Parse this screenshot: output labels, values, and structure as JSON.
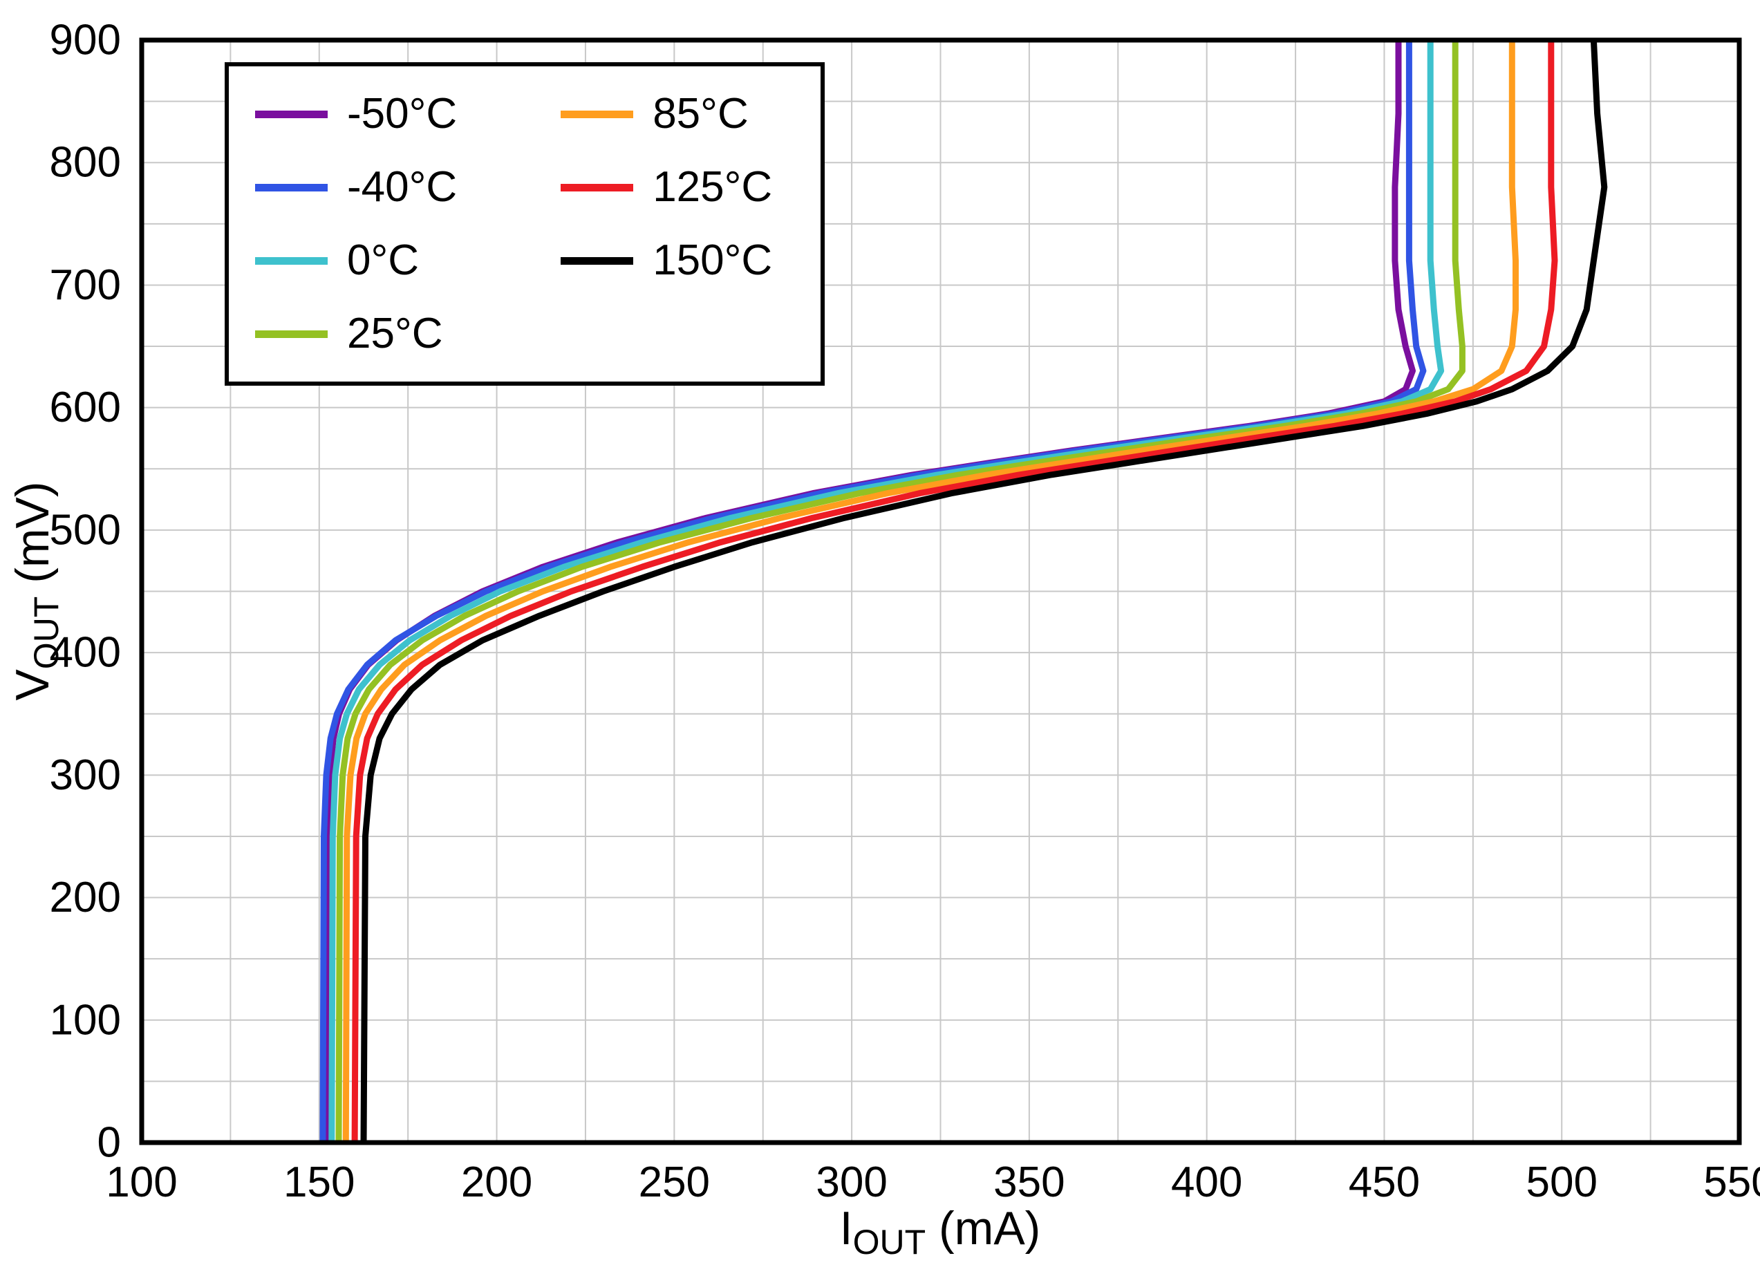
{
  "chart_data": {
    "type": "line",
    "title": "",
    "grid": true,
    "legend_position": "top-left",
    "x_axis": {
      "label_base": "I",
      "label_sub": "OUT",
      "label_unit": " (mA)",
      "min": 100,
      "max": 550,
      "major_step": 50,
      "minor_step": 25,
      "ticks": [
        100,
        150,
        200,
        250,
        300,
        350,
        400,
        450,
        500,
        550
      ]
    },
    "y_axis": {
      "label_base": "V",
      "label_sub": "OUT",
      "label_unit": " (mV)",
      "min": 0,
      "max": 900,
      "major_step": 100,
      "minor_step": 50,
      "ticks": [
        0,
        100,
        200,
        300,
        400,
        500,
        600,
        700,
        800,
        900
      ]
    },
    "colors": {
      "grid": "#c8c8c8",
      "frame": "#000000"
    },
    "series": [
      {
        "name": "-50°C",
        "color": "#7A0F9E",
        "points": [
          [
            152,
            0
          ],
          [
            152.3,
            250
          ],
          [
            153,
            300
          ],
          [
            154,
            330
          ],
          [
            155.6,
            350
          ],
          [
            158.6,
            370
          ],
          [
            163.8,
            390
          ],
          [
            171.8,
            410
          ],
          [
            182.5,
            430
          ],
          [
            196,
            450
          ],
          [
            213,
            470
          ],
          [
            234,
            490
          ],
          [
            259,
            510
          ],
          [
            289,
            530
          ],
          [
            317,
            545
          ],
          [
            339,
            555
          ],
          [
            362,
            565
          ],
          [
            387,
            575
          ],
          [
            412,
            585
          ],
          [
            434,
            595
          ],
          [
            450,
            605
          ],
          [
            456,
            615
          ],
          [
            458,
            630
          ],
          [
            456,
            650
          ],
          [
            454,
            680
          ],
          [
            453,
            720
          ],
          [
            453,
            780
          ],
          [
            454,
            840
          ],
          [
            454,
            900
          ]
        ]
      },
      {
        "name": "-40°C",
        "color": "#3054E4",
        "points": [
          [
            151,
            0
          ],
          [
            151.3,
            250
          ],
          [
            152,
            300
          ],
          [
            153.2,
            330
          ],
          [
            155,
            350
          ],
          [
            158.2,
            370
          ],
          [
            163.5,
            390
          ],
          [
            171.5,
            410
          ],
          [
            183,
            430
          ],
          [
            197,
            450
          ],
          [
            214.5,
            470
          ],
          [
            236,
            490
          ],
          [
            261,
            510
          ],
          [
            291,
            530
          ],
          [
            319,
            545
          ],
          [
            341,
            555
          ],
          [
            364,
            565
          ],
          [
            389,
            575
          ],
          [
            414,
            585
          ],
          [
            436,
            595
          ],
          [
            452,
            605
          ],
          [
            459,
            615
          ],
          [
            461,
            630
          ],
          [
            459,
            650
          ],
          [
            458,
            680
          ],
          [
            457,
            720
          ],
          [
            457,
            780
          ],
          [
            457,
            840
          ],
          [
            457,
            900
          ]
        ]
      },
      {
        "name": "0°C",
        "color": "#3EC1CD",
        "points": [
          [
            153.5,
            0
          ],
          [
            153.8,
            250
          ],
          [
            154.5,
            300
          ],
          [
            155.8,
            330
          ],
          [
            157.8,
            350
          ],
          [
            161.2,
            370
          ],
          [
            167,
            390
          ],
          [
            175.5,
            410
          ],
          [
            187,
            430
          ],
          [
            201,
            450
          ],
          [
            219,
            470
          ],
          [
            241,
            490
          ],
          [
            266,
            510
          ],
          [
            296,
            530
          ],
          [
            324,
            545
          ],
          [
            346,
            555
          ],
          [
            369,
            565
          ],
          [
            393,
            575
          ],
          [
            417,
            585
          ],
          [
            439,
            595
          ],
          [
            455,
            605
          ],
          [
            463,
            615
          ],
          [
            466,
            630
          ],
          [
            465,
            650
          ],
          [
            464,
            680
          ],
          [
            463,
            720
          ],
          [
            463,
            780
          ],
          [
            463,
            840
          ],
          [
            463,
            900
          ]
        ]
      },
      {
        "name": "25°C",
        "color": "#94C123",
        "points": [
          [
            155.5,
            0
          ],
          [
            155.8,
            250
          ],
          [
            156.6,
            300
          ],
          [
            158,
            330
          ],
          [
            160.2,
            350
          ],
          [
            164,
            370
          ],
          [
            170,
            390
          ],
          [
            179,
            410
          ],
          [
            191,
            430
          ],
          [
            206,
            450
          ],
          [
            224,
            470
          ],
          [
            246,
            490
          ],
          [
            272,
            510
          ],
          [
            302,
            530
          ],
          [
            330,
            545
          ],
          [
            352,
            555
          ],
          [
            375,
            565
          ],
          [
            398,
            575
          ],
          [
            422,
            585
          ],
          [
            443,
            595
          ],
          [
            459,
            605
          ],
          [
            468,
            615
          ],
          [
            472,
            630
          ],
          [
            472,
            650
          ],
          [
            471,
            680
          ],
          [
            470,
            720
          ],
          [
            470,
            780
          ],
          [
            470,
            840
          ],
          [
            470,
            900
          ]
        ]
      },
      {
        "name": "85°C",
        "color": "#FF9D1E",
        "points": [
          [
            157.5,
            0
          ],
          [
            157.8,
            250
          ],
          [
            158.8,
            300
          ],
          [
            160.5,
            330
          ],
          [
            163,
            350
          ],
          [
            167.5,
            370
          ],
          [
            174,
            390
          ],
          [
            184,
            410
          ],
          [
            197,
            430
          ],
          [
            213,
            450
          ],
          [
            232,
            470
          ],
          [
            254,
            490
          ],
          [
            280,
            510
          ],
          [
            310,
            530
          ],
          [
            338,
            545
          ],
          [
            360,
            555
          ],
          [
            382,
            565
          ],
          [
            405,
            575
          ],
          [
            428,
            585
          ],
          [
            448,
            595
          ],
          [
            464,
            605
          ],
          [
            475,
            615
          ],
          [
            483,
            630
          ],
          [
            486,
            650
          ],
          [
            487,
            680
          ],
          [
            487,
            720
          ],
          [
            486,
            780
          ],
          [
            486,
            840
          ],
          [
            486,
            900
          ]
        ]
      },
      {
        "name": "125°C",
        "color": "#ED1C24",
        "points": [
          [
            160,
            0
          ],
          [
            160.4,
            250
          ],
          [
            161.5,
            300
          ],
          [
            163.5,
            330
          ],
          [
            166.5,
            350
          ],
          [
            171.5,
            370
          ],
          [
            179,
            390
          ],
          [
            190,
            410
          ],
          [
            204,
            430
          ],
          [
            221,
            450
          ],
          [
            241,
            470
          ],
          [
            263,
            490
          ],
          [
            289,
            510
          ],
          [
            319,
            530
          ],
          [
            347,
            545
          ],
          [
            369,
            555
          ],
          [
            391,
            565
          ],
          [
            413,
            575
          ],
          [
            436,
            585
          ],
          [
            455,
            595
          ],
          [
            470,
            605
          ],
          [
            480,
            615
          ],
          [
            490,
            630
          ],
          [
            495,
            650
          ],
          [
            497,
            680
          ],
          [
            498,
            720
          ],
          [
            497,
            780
          ],
          [
            497,
            840
          ],
          [
            497,
            900
          ]
        ]
      },
      {
        "name": "150°C",
        "color": "#000000",
        "points": [
          [
            162.5,
            0
          ],
          [
            163,
            250
          ],
          [
            164.5,
            300
          ],
          [
            167,
            330
          ],
          [
            170.5,
            350
          ],
          [
            176,
            370
          ],
          [
            184,
            390
          ],
          [
            196,
            410
          ],
          [
            212,
            430
          ],
          [
            230,
            450
          ],
          [
            250,
            470
          ],
          [
            272,
            490
          ],
          [
            298,
            510
          ],
          [
            328,
            530
          ],
          [
            356,
            545
          ],
          [
            378,
            555
          ],
          [
            400,
            565
          ],
          [
            422,
            575
          ],
          [
            444,
            585
          ],
          [
            462,
            595
          ],
          [
            476,
            605
          ],
          [
            486,
            615
          ],
          [
            496,
            630
          ],
          [
            503,
            650
          ],
          [
            507,
            680
          ],
          [
            509,
            720
          ],
          [
            512,
            780
          ],
          [
            510,
            840
          ],
          [
            509,
            900
          ]
        ]
      }
    ]
  }
}
